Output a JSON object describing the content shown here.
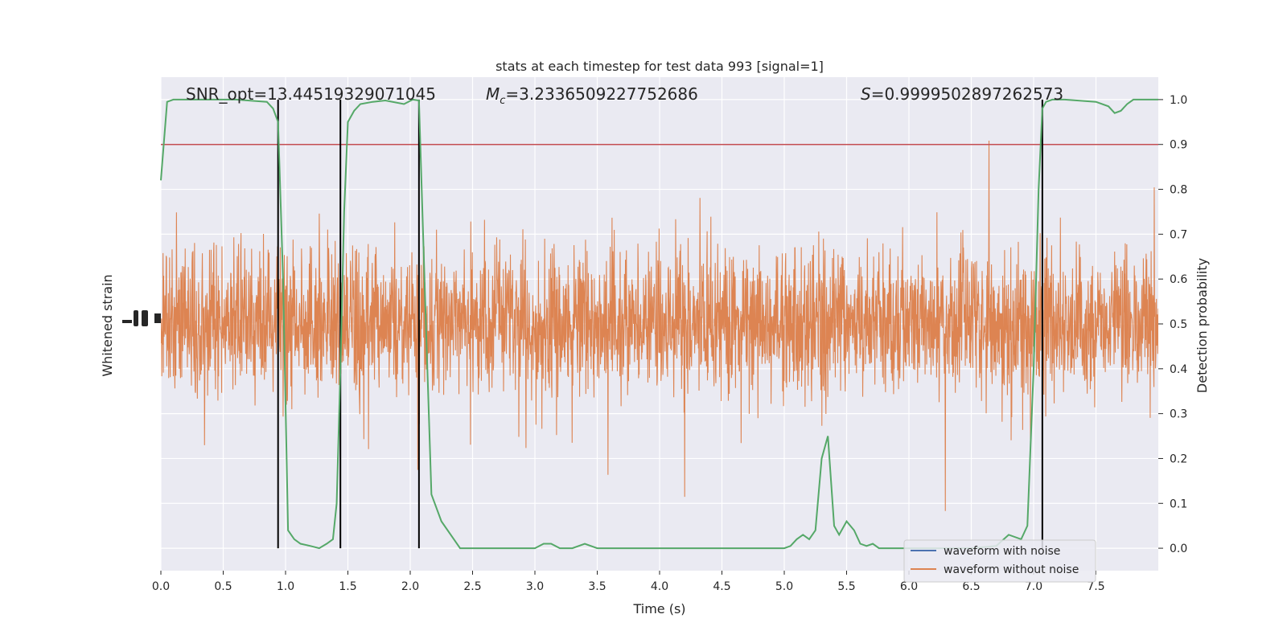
{
  "chart_data": {
    "type": "line",
    "title": "stats at each timestep for test data 993 [signal=1]",
    "xlabel": "Time (s)",
    "ylabel_left": "Whitened strain",
    "ylabel_right": "Detection probability",
    "xlim": [
      0,
      8
    ],
    "ylim_right": [
      -0.05,
      1.05
    ],
    "x_ticks": [
      "0.0",
      "0.5",
      "1.0",
      "1.5",
      "2.0",
      "2.5",
      "3.0",
      "3.5",
      "4.0",
      "4.5",
      "5.0",
      "5.5",
      "6.0",
      "6.5",
      "7.0",
      "7.5"
    ],
    "y_right_ticks": [
      "0.0",
      "0.1",
      "0.2",
      "0.3",
      "0.4",
      "0.5",
      "0.6",
      "0.7",
      "0.8",
      "0.9",
      "1.0"
    ],
    "grid": true,
    "annotations": {
      "snr": "SNR_opt=13.44519329071045",
      "mc_symbol": "M",
      "mc_sub": "c",
      "mc_value": "=3.2336509227752686",
      "s_symbol": "S",
      "s_value": "=0.9999502897262573"
    },
    "threshold": 0.9,
    "vertical_markers": [
      0.94,
      1.44,
      2.07,
      7.07
    ],
    "legend": {
      "placement": "lower-right",
      "entries": [
        {
          "label": "waveform with noise",
          "color": "#4c72b0"
        },
        {
          "label": "waveform without noise",
          "color": "#dd8452"
        }
      ]
    },
    "series": [
      {
        "label": "waveform with noise",
        "color": "#4c72b0"
      },
      {
        "label": "waveform without noise",
        "color": "#dd8452"
      },
      {
        "color": "#55a868",
        "x": [
          0.0,
          0.05,
          0.1,
          0.3,
          0.6,
          0.85,
          0.9,
          0.94,
          0.98,
          1.02,
          1.07,
          1.12,
          1.2,
          1.27,
          1.33,
          1.38,
          1.41,
          1.44,
          1.47,
          1.5,
          1.55,
          1.6,
          1.7,
          1.8,
          1.95,
          2.02,
          2.07,
          2.12,
          2.17,
          2.25,
          2.35,
          2.4,
          2.5,
          2.6,
          2.8,
          3.0,
          3.07,
          3.13,
          3.2,
          3.3,
          3.4,
          3.5,
          3.6,
          3.8,
          4.0,
          4.1,
          4.5,
          4.8,
          5.0,
          5.05,
          5.1,
          5.15,
          5.2,
          5.25,
          5.3,
          5.35,
          5.4,
          5.44,
          5.5,
          5.56,
          5.61,
          5.66,
          5.71,
          5.76,
          5.82,
          5.9,
          6.0,
          6.1,
          6.3,
          6.5,
          6.7,
          6.8,
          6.9,
          6.95,
          7.0,
          7.04,
          7.07,
          7.1,
          7.15,
          7.2,
          7.25,
          7.5,
          7.6,
          7.65,
          7.7,
          7.75,
          7.8,
          7.85,
          7.92,
          8.0
        ],
        "y": [
          0.82,
          0.995,
          1.0,
          1.0,
          1.0,
          0.995,
          0.98,
          0.95,
          0.6,
          0.04,
          0.02,
          0.01,
          0.005,
          0.0,
          0.01,
          0.02,
          0.1,
          0.4,
          0.75,
          0.95,
          0.975,
          0.99,
          0.995,
          0.998,
          0.99,
          1.0,
          0.998,
          0.55,
          0.12,
          0.06,
          0.02,
          0.0,
          0.0,
          0.0,
          0.0,
          0.0,
          0.01,
          0.01,
          0.0,
          0.0,
          0.01,
          0.0,
          0.0,
          0.0,
          0.0,
          0.0,
          0.0,
          0.0,
          0.0,
          0.005,
          0.02,
          0.03,
          0.02,
          0.04,
          0.2,
          0.25,
          0.05,
          0.03,
          0.06,
          0.04,
          0.01,
          0.005,
          0.01,
          0.0,
          0.0,
          0.0,
          0.0,
          0.0,
          0.0,
          0.0,
          0.005,
          0.03,
          0.02,
          0.05,
          0.4,
          0.8,
          0.98,
          0.995,
          1.0,
          1.0,
          1.0,
          0.995,
          0.985,
          0.97,
          0.975,
          0.99,
          1.0,
          1.0,
          1.0,
          1.0
        ]
      }
    ]
  }
}
